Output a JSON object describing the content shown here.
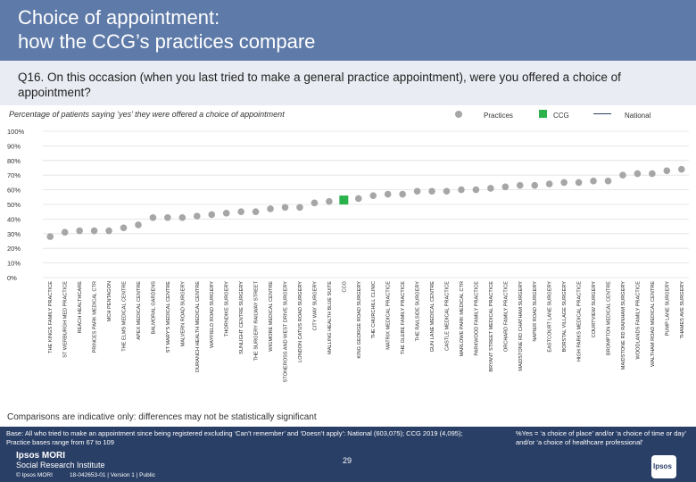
{
  "header": {
    "title_line1": "Choice of appointment:",
    "title_line2": "how the CCG’s practices compare"
  },
  "question": "Q16. On this occasion (when you last tried to make a general practice appointment), were you offered a choice of appointment?",
  "subtitle": "Percentage of patients saying ‘yes’ they were offered a choice of appointment",
  "legend": {
    "practices": "Practices",
    "ccg": "CCG",
    "national": "National"
  },
  "colors": {
    "practice": "#a6a6a6",
    "ccg": "#2bb24c",
    "national": "#2a3f66"
  },
  "chart_data": {
    "type": "scatter",
    "title": "",
    "xlabel": "",
    "ylabel": "",
    "ylim": [
      0,
      100
    ],
    "y_ticks": [
      "0%",
      "10%",
      "20%",
      "30%",
      "40%",
      "50%",
      "60%",
      "70%",
      "80%",
      "90%",
      "100%"
    ],
    "grid": true,
    "categories": [
      "THE KINGS FAMILY PRACTICE",
      "ST WERBURGH MED PRACTICE",
      "REACH HEALTHCARE",
      "PRINCES PARK MEDICAL CTR",
      "MCH PENTAGON",
      "THE ELMS MEDICAL CENTRE",
      "APEX MEDICAL CENTRE",
      "BALMORAL GARDENS",
      "ST MARY'S MEDICAL CENTRE",
      "MALVERN ROAD SURGERY",
      "DURANCH HEALTH MEDICAL CENTRE",
      "WAYFIELD ROAD SURGERY",
      "THORNDIKE SURGERY",
      "SUNLIGHT CENTRE SURGERY",
      "THE SURGERY RAILWAY STREET",
      "WIGMORE MEDICAL CENTRE",
      "STONEROSS AND WEST DRIVE SURGERY",
      "LONDON CATUS ROAD SURGERY",
      "CITY WAY SURGERY",
      "MALLING HEALTH BLUE SUITE",
      "CCG",
      "KING GEORGE ROAD SURGERY",
      "THE CHURCHILL CLINIC",
      "MATRIX MEDICAL PRACTICE",
      "THE GLEBE FAMILY PRACTICE",
      "THE RAILSIDE SURGERY",
      "GUN LANE MEDICAL CENTRE",
      "CASTLE MEDICAL PRACTICE",
      "MARLOWE PARK MEDICAL CTR",
      "PARKWOOD FAMILY PRACTICE",
      "BRYANT STREET MEDICAL PRACTICE",
      "ORCHARD FAMILY PRACTICE",
      "MAIDSTONE RD CHATHAM SURGERY",
      "NAPIER ROAD SURGERY",
      "EASTCOURT LANE SURGERY",
      "BORSTAL VILLAGE SURGERY",
      "HIGH PARKS MEDICAL PRACTICE",
      "COURTVIEW SURGERY",
      "BROMPTON MEDICAL CENTRE",
      "MAIDSTONE RD RAINHAM SURGERY",
      "WOODLANDS FAMILY PRACTICE",
      "WALTHAM ROAD MEDICAL CENTRE",
      "PUMP LANE SURGERY",
      "THAMES AVE SURGERY"
    ],
    "values": [
      28,
      31,
      32,
      32,
      32,
      34,
      36,
      41,
      41,
      41,
      42,
      43,
      44,
      45,
      45,
      47,
      48,
      48,
      51,
      52,
      53,
      54,
      56,
      57,
      57,
      59,
      59,
      59,
      60,
      60,
      61,
      62,
      63,
      63,
      64,
      65,
      65,
      66,
      66,
      70,
      71,
      71,
      73,
      74
    ],
    "kinds": [
      "practice",
      "practice",
      "practice",
      "practice",
      "practice",
      "practice",
      "practice",
      "practice",
      "practice",
      "practice",
      "practice",
      "practice",
      "practice",
      "practice",
      "practice",
      "practice",
      "practice",
      "practice",
      "practice",
      "practice",
      "ccg",
      "practice",
      "practice",
      "practice",
      "practice",
      "practice",
      "practice",
      "practice",
      "practice",
      "practice",
      "practice",
      "practice",
      "practice",
      "practice",
      "practice",
      "practice",
      "practice",
      "practice",
      "practice",
      "practice",
      "practice",
      "practice",
      "practice",
      "practice"
    ]
  },
  "caveat": "Comparisons are indicative only: differences may not be statistically significant",
  "footer": {
    "base": "Base: All who tried to make an appointment since being registered excluding ‘Can’t remember’ and ‘Doesn’t apply’: National (603,075); CCG 2019 (4,095); Practice bases range from 67 to 109",
    "yes_note": "%Yes = ‘a choice of place’ and/or ‘a choice of time or day’ and/or ‘a choice of healthcare professional’",
    "logo_line1": "Ipsos MORI",
    "logo_line2": "Social Research Institute",
    "page_number": "29",
    "copyright": "© Ipsos MORI",
    "ref": "18-042653-01 | Version 1 | Public",
    "ipsos_logo": "Ipsos"
  }
}
